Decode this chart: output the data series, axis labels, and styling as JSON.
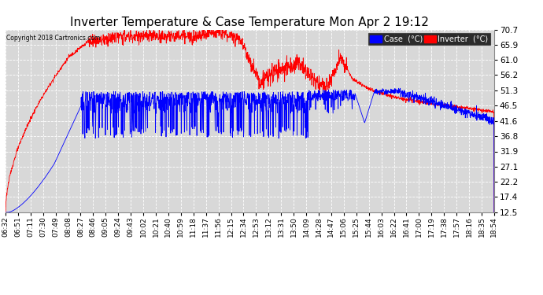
{
  "title": "Inverter Temperature & Case Temperature Mon Apr 2 19:12",
  "copyright": "Copyright 2018 Cartronics.com",
  "legend_labels": [
    "Case  (°C)",
    "Inverter  (°C)"
  ],
  "legend_colors": [
    "blue",
    "red"
  ],
  "yticks": [
    12.5,
    17.4,
    22.2,
    27.1,
    31.9,
    36.8,
    41.6,
    46.5,
    51.3,
    56.2,
    61.0,
    65.9,
    70.7
  ],
  "ylim": [
    12.5,
    70.7
  ],
  "bg_color": "#ffffff",
  "plot_bg_color": "#d8d8d8",
  "grid_color": "#ffffff",
  "title_fontsize": 11,
  "xlabel_fontsize": 6.5,
  "ylabel_fontsize": 7.5,
  "xtick_labels": [
    "06:32",
    "06:51",
    "07:11",
    "07:30",
    "07:49",
    "08:08",
    "08:27",
    "08:46",
    "09:05",
    "09:24",
    "09:43",
    "10:02",
    "10:21",
    "10:40",
    "10:59",
    "11:18",
    "11:37",
    "11:56",
    "12:15",
    "12:34",
    "12:53",
    "13:12",
    "13:31",
    "13:50",
    "14:09",
    "14:28",
    "14:47",
    "15:06",
    "15:25",
    "15:44",
    "16:03",
    "16:22",
    "16:41",
    "17:00",
    "17:19",
    "17:38",
    "17:57",
    "18:16",
    "18:35",
    "18:54"
  ]
}
